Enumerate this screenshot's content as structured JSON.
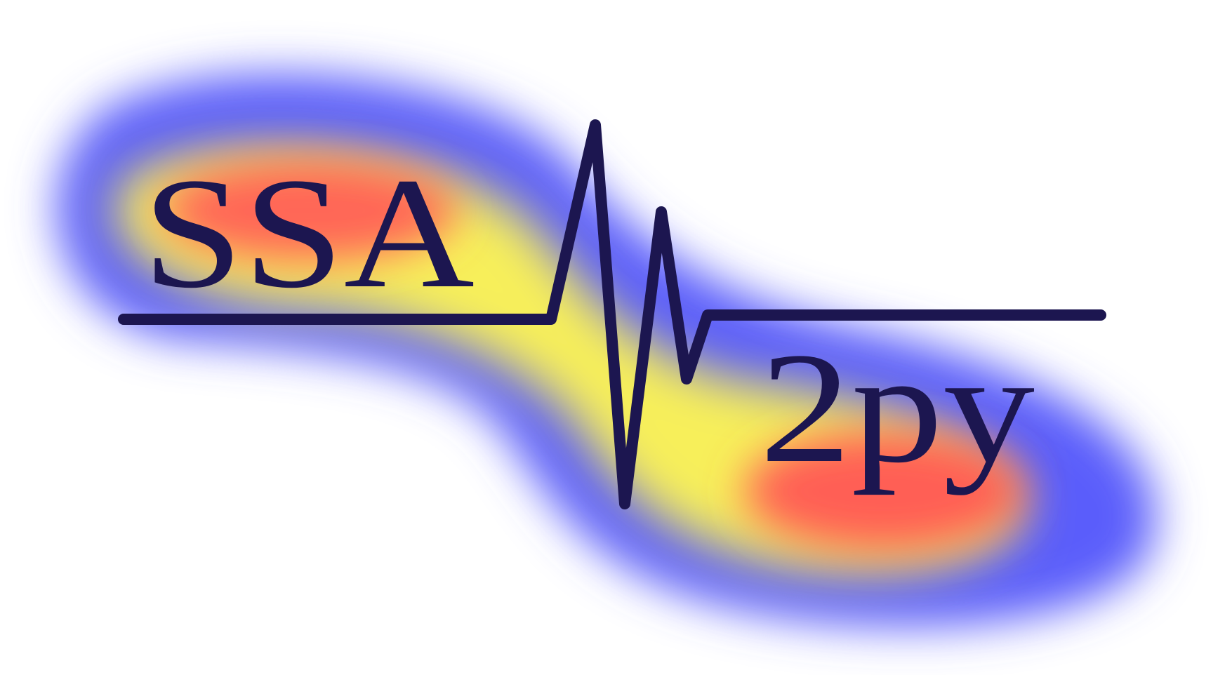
{
  "logo": {
    "title_top": "SSA",
    "title_bottom": "2py",
    "colors": {
      "ink": "#1c1650",
      "glow_outer": "#5a5dfb",
      "glow_mid": "#f7ef5a",
      "glow_core": "#ff5f55",
      "background": "#ffffff"
    },
    "icons": [
      "heatmap-glow",
      "seismogram-line"
    ]
  }
}
